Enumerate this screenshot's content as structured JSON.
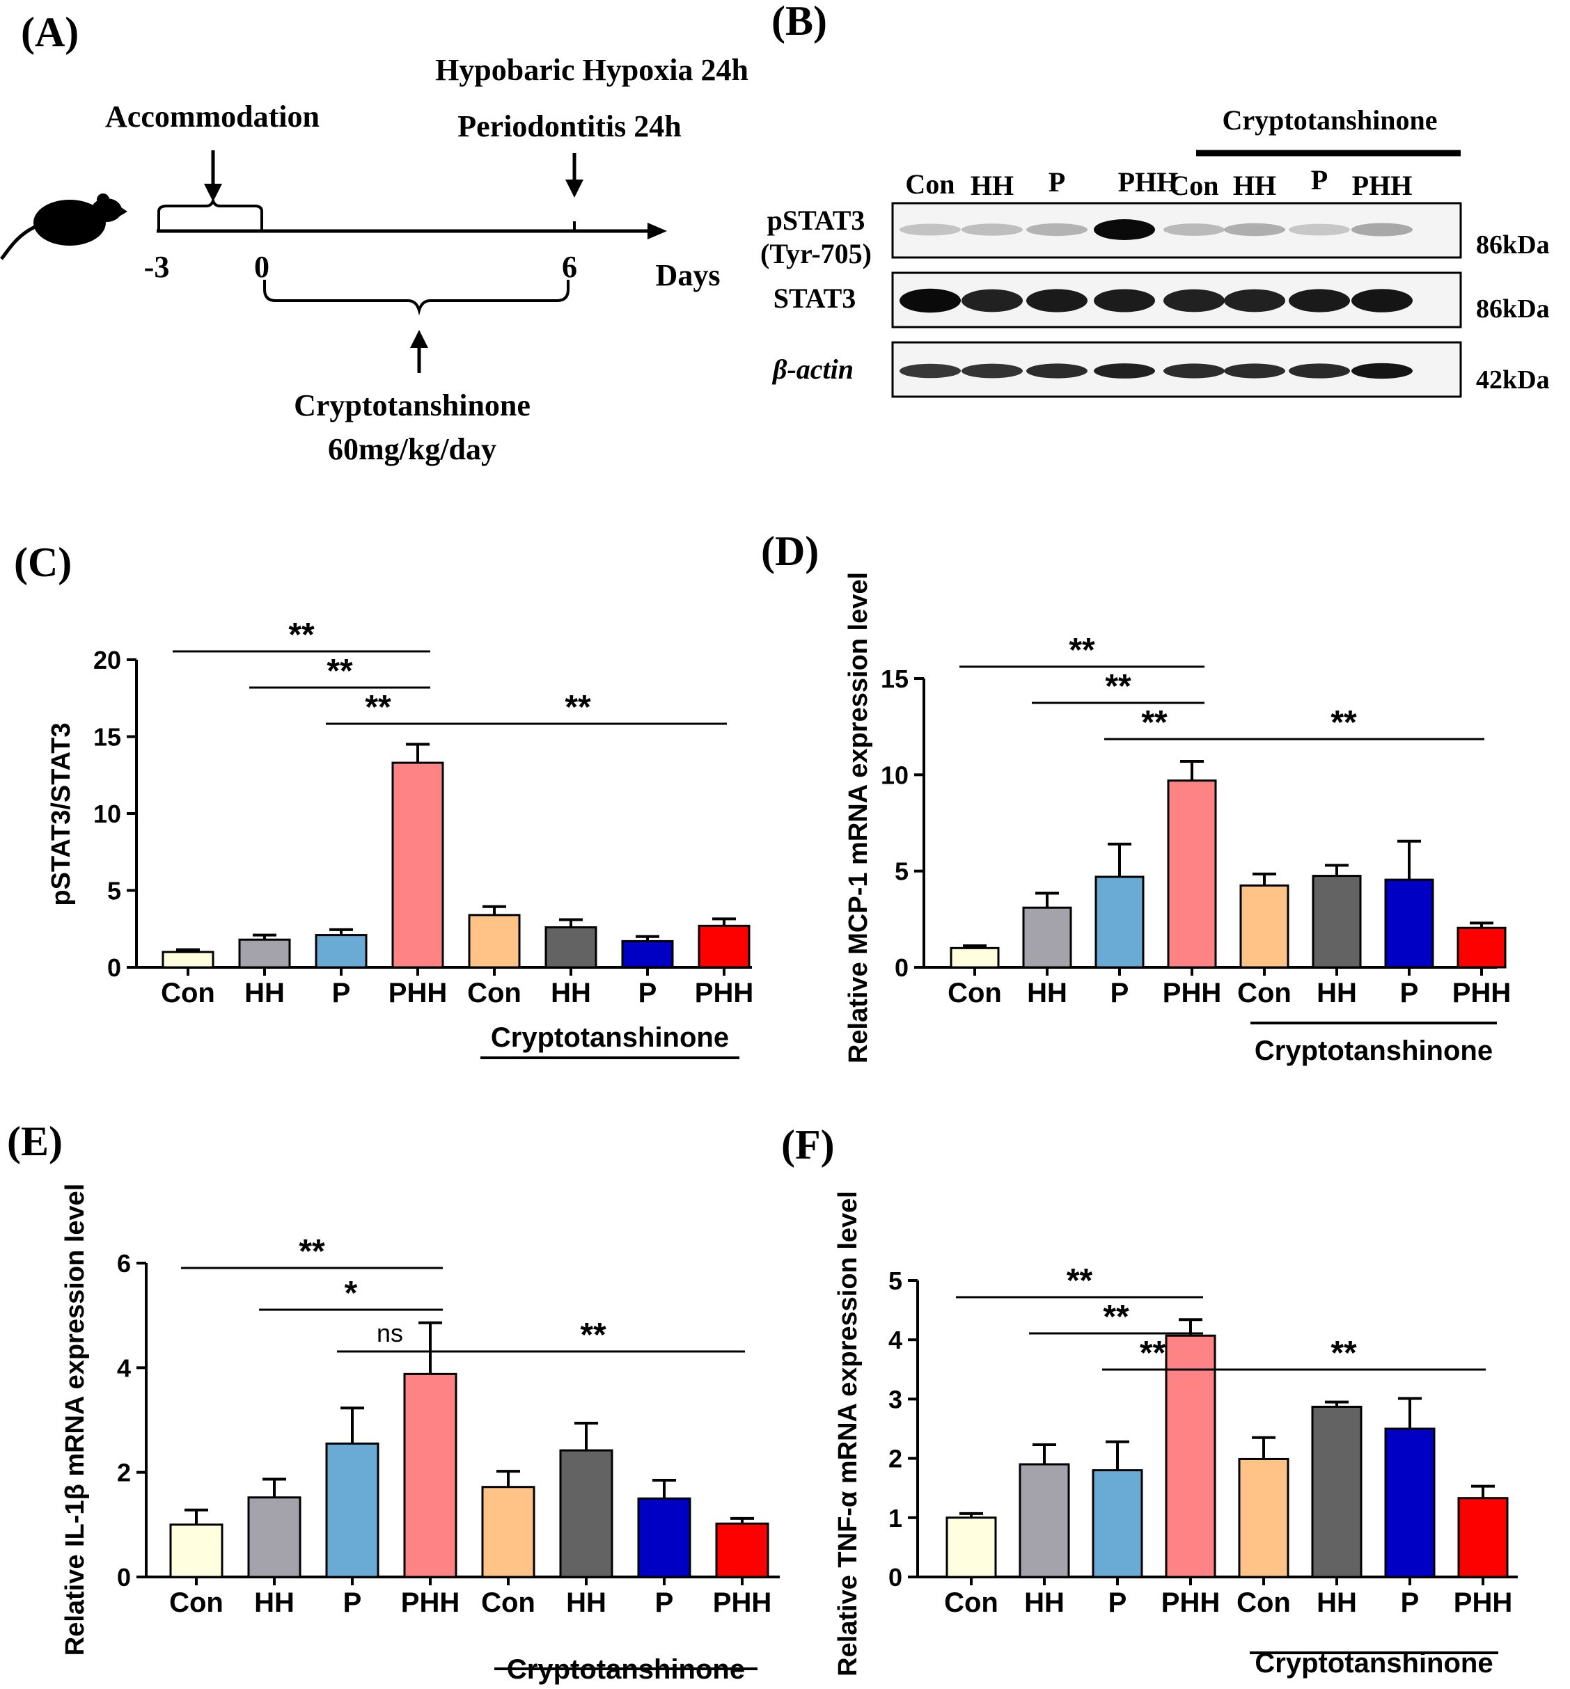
{
  "panel_labels": {
    "a": "(A)",
    "b": "(B)",
    "c": "(C)",
    "d": "(D)",
    "e": "(E)",
    "f": "(F)"
  },
  "timeline": {
    "accommodation": "Accommodation",
    "hypoxia": "Hypobaric Hypoxia 24h",
    "periodontitis": "Periodontitis 24h",
    "tick_m3": "-3",
    "tick_0": "0",
    "tick_6": "6",
    "days": "Days",
    "drug": "Cryptotanshinone",
    "dose": "60mg/kg/day"
  },
  "blot": {
    "treatment_label": "Cryptotanshinone",
    "lanes": [
      "Con",
      "HH",
      "P",
      "PHH",
      "Con",
      "HH",
      "P",
      "PHH"
    ],
    "pstat3_label": "pSTAT3",
    "pstat3_site": "(Tyr-705)",
    "stat3_label": "STAT3",
    "actin_label": "β-actin",
    "sizes": [
      "86kDa",
      "86kDa",
      "42kDa"
    ],
    "pstat3_intensity": [
      0.18,
      0.2,
      0.25,
      1.0,
      0.22,
      0.27,
      0.16,
      0.3
    ],
    "stat3_intensity": [
      1.0,
      0.9,
      0.93,
      0.92,
      0.9,
      0.9,
      0.93,
      0.95
    ],
    "actin_intensity": [
      0.8,
      0.82,
      0.85,
      0.9,
      0.85,
      0.85,
      0.86,
      0.95
    ]
  },
  "colors": [
    "#ffffe0",
    "#a4a3ab",
    "#6aabd6",
    "#fd8384",
    "#ffc287",
    "#636363",
    "#0000c4",
    "#fd0000"
  ],
  "chart_data": [
    {
      "type": "bar",
      "id": "C",
      "categories": [
        "Con",
        "HH",
        "P",
        "PHH",
        "Con",
        "HH",
        "P",
        "PHH"
      ],
      "values": [
        1.0,
        1.8,
        2.1,
        13.3,
        3.4,
        2.6,
        1.7,
        2.7
      ],
      "errors": [
        0.15,
        0.3,
        0.35,
        1.2,
        0.55,
        0.5,
        0.3,
        0.45
      ],
      "ylabel": "pSTAT3/STAT3",
      "ylim": [
        0,
        20
      ],
      "yticks": [
        0,
        5,
        10,
        15,
        20
      ],
      "group_label": "Cryptotanshinone",
      "significance": [
        {
          "from": 0,
          "to": 3,
          "label": "**"
        },
        {
          "from": 1,
          "to": 3,
          "label": "**"
        },
        {
          "from": 2,
          "to": 3,
          "label": "**"
        },
        {
          "from": 3,
          "to": 7,
          "label": "**"
        }
      ]
    },
    {
      "type": "bar",
      "id": "D",
      "categories": [
        "Con",
        "HH",
        "P",
        "PHH",
        "Con",
        "HH",
        "P",
        "PHH"
      ],
      "values": [
        1.0,
        3.1,
        4.7,
        9.7,
        4.25,
        4.75,
        4.55,
        2.05
      ],
      "errors": [
        0.12,
        0.75,
        1.7,
        1.0,
        0.6,
        0.55,
        2.0,
        0.25
      ],
      "ylabel": "Relative MCP-1 mRNA expression level",
      "ylim": [
        0,
        15
      ],
      "yticks": [
        0,
        5,
        10,
        15
      ],
      "group_label": "Cryptotanshinone",
      "significance": [
        {
          "from": 0,
          "to": 3,
          "label": "**"
        },
        {
          "from": 1,
          "to": 3,
          "label": "**"
        },
        {
          "from": 2,
          "to": 3,
          "label": "**"
        },
        {
          "from": 3,
          "to": 7,
          "label": "**"
        }
      ]
    },
    {
      "type": "bar",
      "id": "E",
      "categories": [
        "Con",
        "HH",
        "P",
        "PHH",
        "Con",
        "HH",
        "P",
        "PHH"
      ],
      "values": [
        1.0,
        1.52,
        2.55,
        3.88,
        1.72,
        2.42,
        1.5,
        1.02
      ],
      "errors": [
        0.28,
        0.35,
        0.68,
        0.98,
        0.3,
        0.52,
        0.35,
        0.1
      ],
      "ylabel": "Relative IL-1β mRNA expression level",
      "ylim": [
        0,
        6
      ],
      "yticks": [
        0,
        2,
        4,
        6
      ],
      "group_label": "Cryptotanshinone",
      "significance": [
        {
          "from": 0,
          "to": 3,
          "label": "**"
        },
        {
          "from": 1,
          "to": 3,
          "label": "*"
        },
        {
          "from": 2,
          "to": 3,
          "label": "ns"
        },
        {
          "from": 3,
          "to": 7,
          "label": "**"
        }
      ]
    },
    {
      "type": "bar",
      "id": "F",
      "categories": [
        "Con",
        "HH",
        "P",
        "PHH",
        "Con",
        "HH",
        "P",
        "PHH"
      ],
      "values": [
        1.0,
        1.9,
        1.8,
        4.07,
        1.99,
        2.87,
        2.5,
        1.33
      ],
      "errors": [
        0.07,
        0.33,
        0.48,
        0.27,
        0.36,
        0.08,
        0.51,
        0.2
      ],
      "ylabel": "Relative TNF-α mRNA expression level",
      "ylim": [
        0,
        5
      ],
      "yticks": [
        0,
        1,
        2,
        3,
        4,
        5
      ],
      "group_label": "Cryptotanshinone",
      "significance": [
        {
          "from": 0,
          "to": 3,
          "label": "**"
        },
        {
          "from": 1,
          "to": 3,
          "label": "**"
        },
        {
          "from": 2,
          "to": 3,
          "label": "**"
        },
        {
          "from": 3,
          "to": 7,
          "label": "**"
        }
      ]
    }
  ]
}
